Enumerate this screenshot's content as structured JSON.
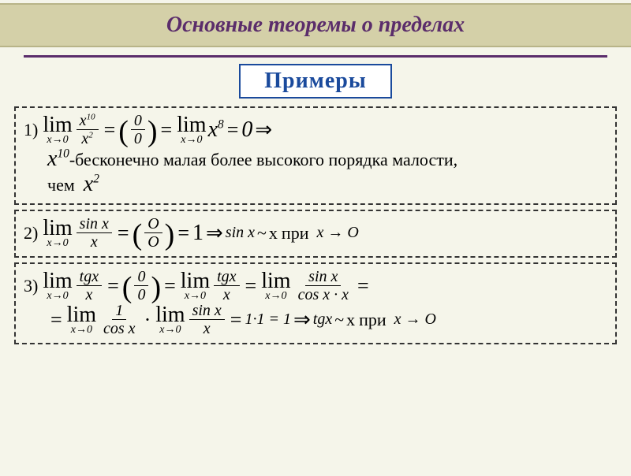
{
  "title": "Основные теоремы о пределах",
  "examples_label": "Примеры",
  "ex1": {
    "label": "1)",
    "lim_word": "lim",
    "lim_sub": "x→0",
    "frac1_num": "x",
    "frac1_num_sup": "10",
    "frac1_den": "x",
    "frac1_den_sup": "2",
    "eq1": "=",
    "paren_open": "(",
    "zero_num": "0",
    "zero_den": "0",
    "paren_close": ")",
    "eq2": "=",
    "lim2_word": "lim",
    "lim2_sub": "x→0",
    "x8": "x",
    "x8_sup": "8",
    "eq3": "=",
    "res": "0",
    "arrow": "⇒",
    "desc_x": "x",
    "desc_x_sup": "10",
    "desc_text1": "-бесконечно малая более высокого порядка малости,",
    "desc_text2": "чем",
    "desc_x2": "x",
    "desc_x2_sup": "2"
  },
  "ex2": {
    "label": "2)",
    "lim_word": "lim",
    "lim_sub": "x→0",
    "frac_num": "sin x",
    "frac_den": "x",
    "eq1": "=",
    "paren_open": "(",
    "o_num": "O",
    "o_den": "O",
    "paren_close": ")",
    "eq2": "=",
    "one": "1",
    "arrow": "⇒",
    "sinx": "sin x",
    "tilde": "~",
    "x": "x",
    "pri": "при",
    "x_arr": "x → O"
  },
  "ex3": {
    "label": "3)",
    "lim_word": "lim",
    "lim_sub": "x→0",
    "tgx": "tgx",
    "x": "x",
    "eq": "=",
    "paren_open": "(",
    "z_num": "0",
    "z_den": "0",
    "paren_close": ")",
    "sinx": "sin x",
    "cosxx": "cos x · x",
    "one": "1",
    "cosx": "cos x",
    "dot": "·",
    "res11": "1·1 = 1",
    "arrow": "⇒",
    "tilde": "~",
    "pri": "при",
    "x_arr": "x → O"
  },
  "colors": {
    "title_bg": "#d4d0a8",
    "title_text": "#5b2d6b",
    "hr": "#5b2d6b",
    "examples_border": "#1a4a9c",
    "examples_text": "#1a4a9c",
    "body_bg": "#f5f5ea"
  }
}
